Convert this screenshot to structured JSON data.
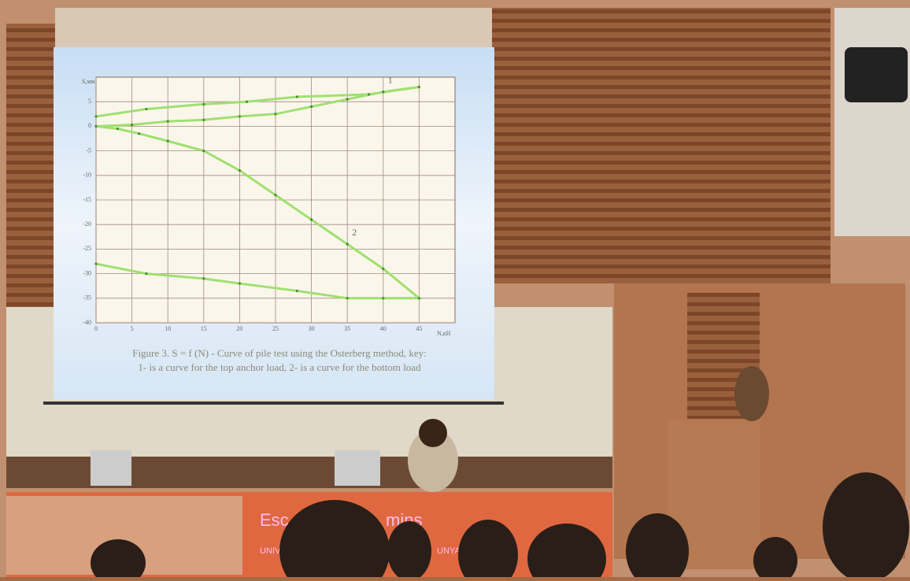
{
  "chart_data": {
    "type": "line",
    "ylabel": "S,мм",
    "xlabel": "N,кН",
    "xlim": [
      0,
      50
    ],
    "xticks": [
      0,
      5,
      10,
      15,
      20,
      25,
      30,
      35,
      40,
      45
    ],
    "ylim": [
      -40,
      10
    ],
    "yticks": [
      5,
      0,
      -5,
      -10,
      -15,
      -20,
      -25,
      -30,
      -35,
      -40
    ],
    "grid": true,
    "series": [
      {
        "name": "1",
        "color": "#9fe070",
        "x": [
          0,
          7,
          15,
          21,
          28,
          38,
          45,
          40,
          35,
          30,
          25,
          20,
          15,
          10,
          5,
          0
        ],
        "values": [
          2,
          3.5,
          4.5,
          5,
          6,
          6.5,
          8,
          7,
          5.5,
          4,
          2.5,
          2,
          1.3,
          1,
          0.3,
          0
        ]
      },
      {
        "name": "2",
        "color": "#9fe070",
        "x": [
          0,
          3,
          6,
          10,
          15,
          20,
          25,
          30,
          35,
          40,
          45,
          40,
          35,
          28,
          20,
          15,
          7,
          0
        ],
        "values": [
          0,
          -0.5,
          -1.5,
          -3,
          -5,
          -9,
          -14,
          -19,
          -24,
          -29,
          -35,
          -35,
          -35,
          -33.5,
          -32,
          -31,
          -30,
          -28
        ]
      }
    ],
    "caption": [
      "Figure 3. S = f (N) - Curve of pile test using the Osterberg method, key:",
      "1- is a curve for the top anchor  load, 2- is a curve for the bottom load"
    ]
  },
  "banner": {
    "title_left": "Esc",
    "title_right": "mins",
    "sub_left": "UNIV",
    "sub_right": "UNYA"
  }
}
